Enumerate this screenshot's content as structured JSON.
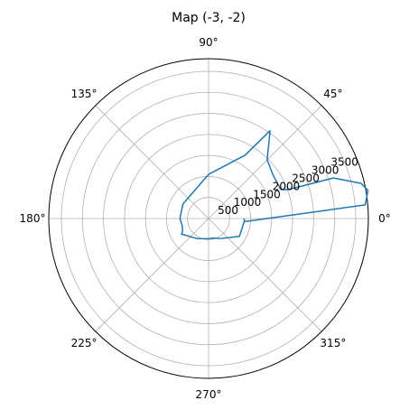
{
  "chart_data": {
    "type": "line",
    "projection": "polar",
    "title": "Map (-3, -2)",
    "angle_unit": "degrees",
    "theta_ticks": [
      "0°",
      "45°",
      "90°",
      "135°",
      "180°",
      "225°",
      "270°",
      "315°"
    ],
    "theta_tick_values": [
      0,
      45,
      90,
      135,
      180,
      225,
      270,
      315
    ],
    "r_ticks": [
      "500",
      "1000",
      "1500",
      "2000",
      "2500",
      "3000",
      "3500"
    ],
    "r_tick_values": [
      500,
      1000,
      1500,
      2000,
      2500,
      3000,
      3500
    ],
    "rlim": [
      0,
      3800
    ],
    "grid": true,
    "series_color": "#1f77b4",
    "series": [
      {
        "theta": [
          -5,
          5,
          10,
          13,
          18,
          20,
          22,
          34,
          45,
          55,
          60,
          90,
          150,
          165,
          180,
          195,
          205,
          210,
          240,
          270,
          285,
          300,
          330,
          355,
          360
        ],
        "r": [
          850,
          3740,
          3850,
          3720,
          3120,
          2000,
          1850,
          1850,
          1970,
          2550,
          1740,
          1050,
          700,
          670,
          680,
          650,
          680,
          740,
          550,
          480,
          480,
          550,
          850,
          850,
          850
        ]
      }
    ]
  }
}
